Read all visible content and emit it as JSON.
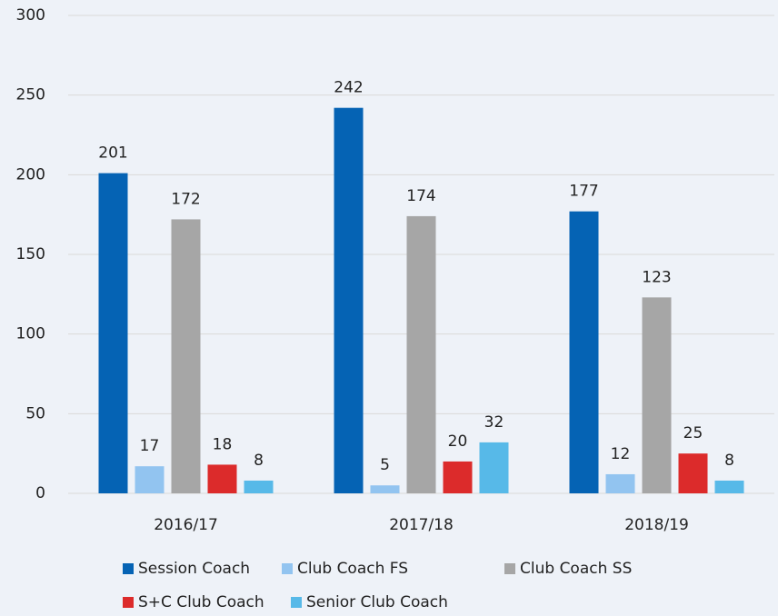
{
  "chart_data": {
    "type": "bar",
    "categories": [
      "2016/17",
      "2017/18",
      "2018/19"
    ],
    "series": [
      {
        "name": "Session Coach",
        "color": "#0563b4",
        "values": [
          201,
          242,
          177
        ]
      },
      {
        "name": "Club Coach FS",
        "color": "#92c4f0",
        "values": [
          17,
          5,
          12
        ]
      },
      {
        "name": "Club Coach SS",
        "color": "#a6a6a6",
        "values": [
          172,
          174,
          123
        ]
      },
      {
        "name": "S+C Club Coach",
        "color": "#dc2b2b",
        "values": [
          18,
          20,
          25
        ]
      },
      {
        "name": "Senior Club Coach",
        "color": "#57b9e8",
        "values": [
          8,
          32,
          8
        ]
      }
    ],
    "ylim": [
      0,
      300
    ],
    "yticks": [
      0,
      50,
      100,
      150,
      200,
      250,
      300
    ],
    "grid": true,
    "legend": "bottom"
  }
}
